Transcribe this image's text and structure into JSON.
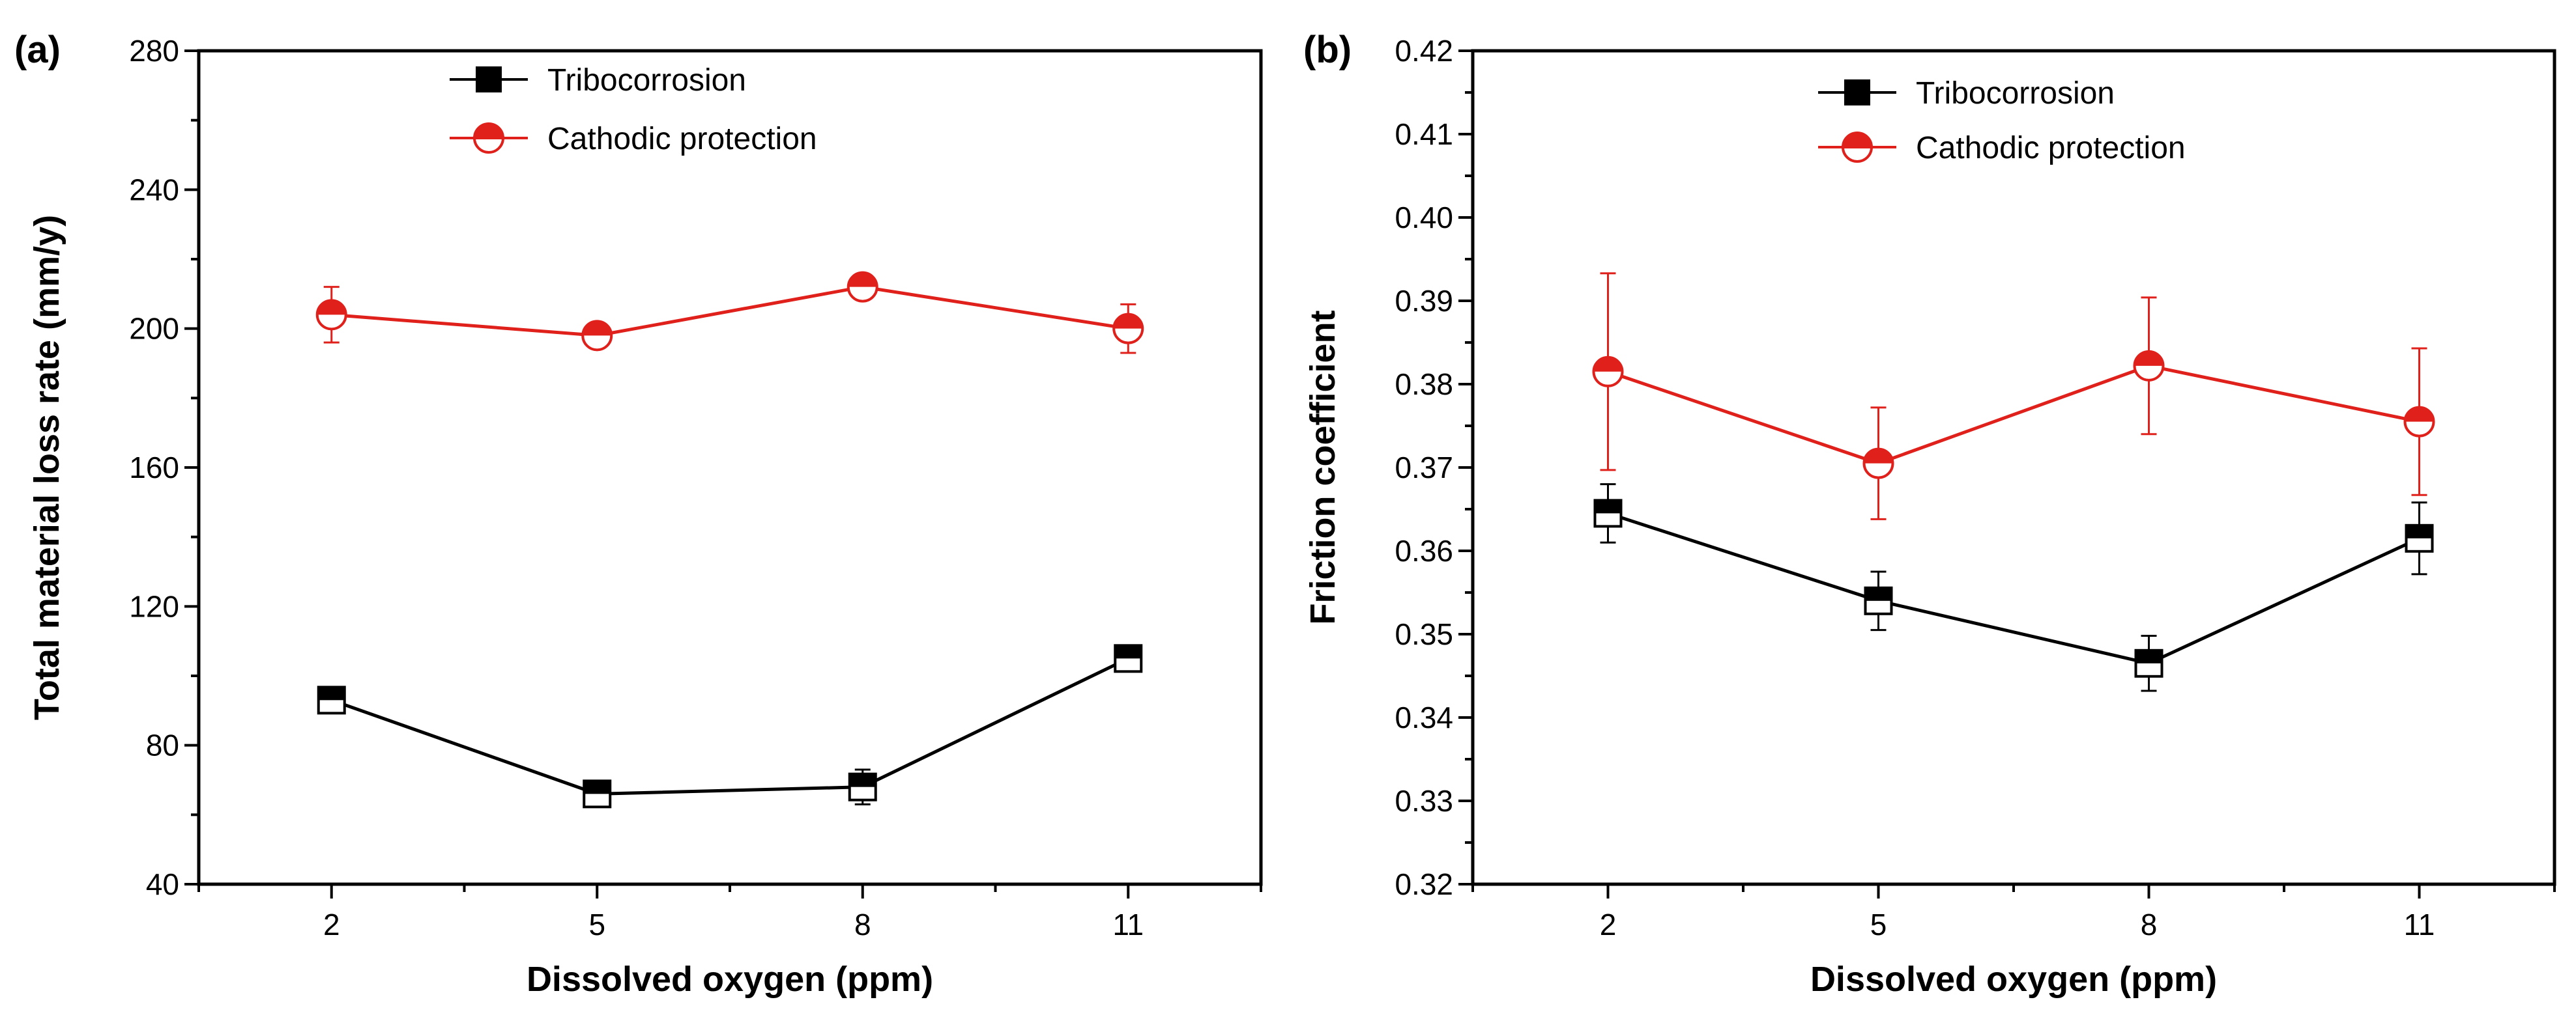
{
  "chart_data": [
    {
      "type": "line",
      "panel_label": "(a)",
      "xlabel": "Dissolved oxygen (ppm)",
      "ylabel": "Total material loss rate (mm/y)",
      "x": [
        2,
        5,
        8,
        11
      ],
      "x_ticks": [
        "2",
        "5",
        "8",
        "11"
      ],
      "xlim": [
        0.5,
        12.5
      ],
      "ylim": [
        40,
        280
      ],
      "y_ticks": [
        "40",
        "80",
        "120",
        "160",
        "200",
        "240",
        "280"
      ],
      "legend_position": "top-center",
      "series": [
        {
          "name": "Tribocorrosion",
          "color": "#000000",
          "marker": "half-filled-square",
          "values": [
            93,
            66,
            68,
            105
          ],
          "errors": [
            3,
            3,
            5,
            3
          ]
        },
        {
          "name": "Cathodic protection",
          "color": "#e0201b",
          "marker": "half-filled-circle",
          "values": [
            204,
            198,
            212,
            200
          ],
          "errors": [
            8,
            2,
            3,
            7
          ]
        }
      ]
    },
    {
      "type": "line",
      "panel_label": "(b)",
      "xlabel": "Dissolved oxygen (ppm)",
      "ylabel": "Friction coefficient",
      "x": [
        2,
        5,
        8,
        11
      ],
      "x_ticks": [
        "2",
        "5",
        "8",
        "11"
      ],
      "xlim": [
        0.5,
        12.5
      ],
      "ylim": [
        0.32,
        0.42
      ],
      "y_ticks": [
        "0.32",
        "0.33",
        "0.34",
        "0.35",
        "0.36",
        "0.37",
        "0.38",
        "0.39",
        "0.40",
        "0.41",
        "0.42"
      ],
      "legend_position": "top-center",
      "series": [
        {
          "name": "Tribocorrosion",
          "color": "#000000",
          "marker": "half-filled-square",
          "values": [
            0.3645,
            0.354,
            0.3465,
            0.3615
          ],
          "errors": [
            0.0035,
            0.0035,
            0.0033,
            0.0043
          ]
        },
        {
          "name": "Cathodic protection",
          "color": "#e0201b",
          "marker": "half-filled-circle",
          "values": [
            0.3815,
            0.3705,
            0.3822,
            0.3755
          ],
          "errors": [
            0.0118,
            0.0067,
            0.0082,
            0.0088
          ]
        }
      ]
    }
  ]
}
